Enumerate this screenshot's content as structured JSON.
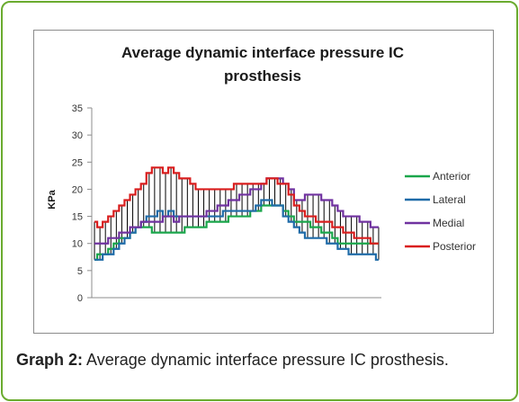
{
  "caption": {
    "label": "Graph 2:",
    "text": " Average dynamic interface pressure IC prosthesis."
  },
  "chart_data": {
    "type": "line",
    "title_line1": "Average dynamic interface pressure IC",
    "title_line2": "prosthesis",
    "ylabel": "KPa",
    "xlabel": "",
    "ylim": [
      0,
      35
    ],
    "yticks": [
      0,
      5,
      10,
      15,
      20,
      25,
      30,
      35
    ],
    "grid": false,
    "legend_position": "right",
    "hi_lo_lines": true,
    "n_points": 53,
    "x": [
      1,
      2,
      3,
      4,
      5,
      6,
      7,
      8,
      9,
      10,
      11,
      12,
      13,
      14,
      15,
      16,
      17,
      18,
      19,
      20,
      21,
      22,
      23,
      24,
      25,
      26,
      27,
      28,
      29,
      30,
      31,
      32,
      33,
      34,
      35,
      36,
      37,
      38,
      39,
      40,
      41,
      42,
      43,
      44,
      45,
      46,
      47,
      48,
      49,
      50,
      51,
      52,
      53
    ],
    "series": [
      {
        "name": "Anterior",
        "color": "#1aa64b",
        "values": [
          7,
          8,
          8,
          9,
          10,
          11,
          11,
          12,
          13,
          13,
          13,
          12,
          12,
          12,
          12,
          12,
          12,
          13,
          13,
          13,
          13,
          14,
          14,
          14,
          14,
          15,
          15,
          15,
          15,
          16,
          16,
          17,
          17,
          17,
          17,
          16,
          15,
          14,
          14,
          14,
          13,
          13,
          12,
          12,
          11,
          10,
          10,
          10,
          10,
          10,
          10,
          10,
          10
        ]
      },
      {
        "name": "Lateral",
        "color": "#1f6ba8",
        "values": [
          7,
          7,
          8,
          8,
          9,
          10,
          11,
          12,
          13,
          14,
          15,
          15,
          16,
          15,
          16,
          15,
          15,
          15,
          15,
          15,
          15,
          15,
          15,
          15,
          16,
          16,
          16,
          16,
          16,
          16,
          17,
          18,
          18,
          17,
          17,
          15,
          14,
          13,
          12,
          11,
          11,
          11,
          11,
          10,
          10,
          9,
          9,
          8,
          8,
          8,
          8,
          8,
          7
        ]
      },
      {
        "name": "Medial",
        "color": "#7032a0",
        "values": [
          10,
          10,
          10,
          11,
          11,
          12,
          12,
          13,
          13,
          14,
          14,
          14,
          14,
          15,
          15,
          14,
          15,
          15,
          15,
          15,
          15,
          16,
          16,
          17,
          17,
          18,
          18,
          19,
          19,
          20,
          20,
          21,
          22,
          22,
          22,
          21,
          20,
          18,
          18,
          19,
          19,
          19,
          18,
          18,
          17,
          16,
          15,
          15,
          15,
          14,
          14,
          13,
          13
        ]
      },
      {
        "name": "Posterior",
        "color": "#d91e1e",
        "values": [
          14,
          13,
          14,
          15,
          16,
          17,
          18,
          19,
          20,
          21,
          23,
          24,
          24,
          23,
          24,
          23,
          22,
          22,
          21,
          20,
          20,
          20,
          20,
          20,
          20,
          20,
          21,
          21,
          21,
          21,
          21,
          21,
          22,
          22,
          21,
          21,
          19,
          17,
          16,
          15,
          15,
          14,
          14,
          14,
          13,
          13,
          12,
          12,
          11,
          11,
          11,
          10,
          10
        ]
      }
    ]
  }
}
